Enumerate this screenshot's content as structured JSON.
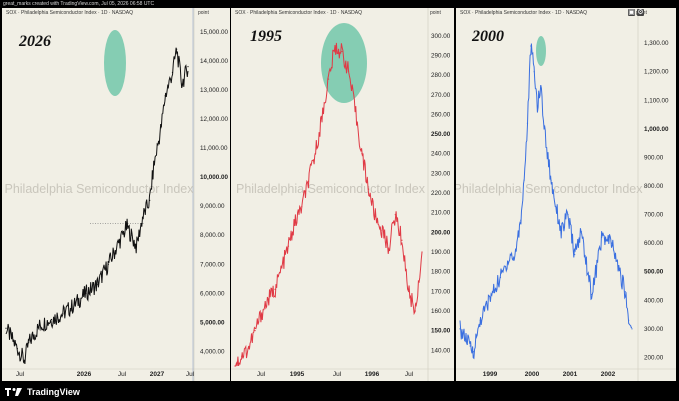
{
  "attribution": "great_marks created with TradingView.com, Jul 05, 2026 06:58 UTC",
  "footer": {
    "brand": "TradingView"
  },
  "colors": {
    "panel_bg": "#f1efe5",
    "highlight": "#5cbfa0"
  },
  "panels": [
    {
      "symbol_label": "SOX · Philadelphia Semiconductor Index · 1D · NASDAQ",
      "unit_label": "point",
      "big_label": "2026",
      "watermark": "Philadelphia Semiconductor Index",
      "x_labels": [
        "Jul",
        "2026",
        "Jul",
        "2027",
        "Jul"
      ],
      "y_labels": [
        "15,000.00",
        "14,000.00",
        "13,000.00",
        "12,000.00",
        "11,000.00",
        "10,000.00",
        "9,000.00",
        "8,000.00",
        "7,000.00",
        "6,000.00",
        "5,000.00",
        "4,000.00"
      ]
    },
    {
      "symbol_label": "SOX · Philadelphia Semiconductor Index · 1D · NASDAQ",
      "unit_label": "point",
      "big_label": "1995",
      "watermark": "Philadelphia Semiconductor Index",
      "x_labels": [
        "Jul",
        "1995",
        "Jul",
        "1996",
        "Jul"
      ],
      "y_labels": [
        "300.00",
        "290.00",
        "280.00",
        "270.00",
        "260.00",
        "250.00",
        "240.00",
        "230.00",
        "220.00",
        "210.00",
        "200.00",
        "190.00",
        "180.00",
        "170.00",
        "160.00",
        "150.00",
        "140.00"
      ]
    },
    {
      "symbol_label": "SOX · Philadelphia Semiconductor Index · 1D · NASDAQ",
      "unit_label": "point",
      "big_label": "2000",
      "watermark": "Philadelphia Semiconductor Index",
      "x_labels": [
        "1999",
        "2000",
        "2001",
        "2002"
      ],
      "y_labels": [
        "1,300.00",
        "1,200.00",
        "1,100.00",
        "1,000.00",
        "900.00",
        "800.00",
        "700.00",
        "600.00",
        "500.00",
        "400.00",
        "300.00",
        "200.00"
      ]
    }
  ],
  "chart_data": [
    {
      "type": "line",
      "title": "SOX · Philadelphia Semiconductor Index · 1D · NASDAQ",
      "ylim": [
        3500,
        15200
      ],
      "grid": false,
      "series": [
        {
          "color": "#111111",
          "x": [
            "2025-03",
            "2025-04",
            "2025-04-20",
            "2025-05",
            "2025-06",
            "2025-07",
            "2025-08",
            "2025-09",
            "2025-10",
            "2025-11",
            "2025-12",
            "2026-01",
            "2026-01-20",
            "2026-02",
            "2026-02-15",
            "2026-03",
            "2026-03-20",
            "2026-04",
            "2026-04-20",
            "2026-05",
            "2026-05-20",
            "2026-06",
            "2026-06-15",
            "2026-07"
          ],
          "values": [
            4800,
            4100,
            3700,
            4300,
            4900,
            5100,
            5300,
            5600,
            6000,
            6300,
            7000,
            7800,
            8300,
            8000,
            7600,
            8600,
            9200,
            10400,
            11700,
            12800,
            13600,
            14400,
            13200,
            13800
          ]
        }
      ],
      "annotations": [
        {
          "type": "highlight-ellipse",
          "region": "peak"
        },
        {
          "type": "dotted-reference",
          "value": 8400
        }
      ]
    },
    {
      "type": "line",
      "title": "SOX · Philadelphia Semiconductor Index · 1D · NASDAQ",
      "ylim": [
        132,
        305
      ],
      "grid": false,
      "series": [
        {
          "color": "#e03a45",
          "x": [
            "1994-05",
            "1994-06",
            "1994-07",
            "1994-08",
            "1994-09",
            "1994-10",
            "1994-11",
            "1994-12",
            "1995-01",
            "1995-02",
            "1995-03",
            "1995-04",
            "1995-05",
            "1995-06",
            "1995-07",
            "1995-08",
            "1995-09",
            "1995-10",
            "1995-11",
            "1995-12",
            "1996-01",
            "1996-02",
            "1996-03",
            "1996-04",
            "1996-05",
            "1996-06",
            "1996-07",
            "1996-08",
            "1996-09"
          ],
          "values": [
            132,
            137,
            141,
            150,
            159,
            166,
            171,
            182,
            193,
            205,
            213,
            226,
            240,
            258,
            278,
            294,
            292,
            282,
            262,
            240,
            222,
            208,
            201,
            192,
            209,
            196,
            170,
            160,
            190
          ]
        }
      ],
      "annotations": [
        {
          "type": "highlight-ellipse",
          "region": "peak"
        }
      ]
    },
    {
      "type": "line",
      "title": "SOX · Philadelphia Semiconductor Index · 1D · NASDAQ",
      "ylim": [
        170,
        1360
      ],
      "grid": false,
      "series": [
        {
          "color": "#3a6fe0",
          "x": [
            "1998-06",
            "1998-09",
            "1998-10",
            "1998-12",
            "1999-03",
            "1999-06",
            "1999-09",
            "1999-10",
            "1999-12",
            "2000-01",
            "2000-02",
            "2000-03",
            "2000-04",
            "2000-05",
            "2000-06",
            "2000-07",
            "2000-09",
            "2000-12",
            "2001-02",
            "2001-04",
            "2001-06",
            "2001-09",
            "2001-10",
            "2001-12",
            "2002-03",
            "2002-05",
            "2002-07",
            "2002-08",
            "2002-09"
          ],
          "values": [
            300,
            240,
            220,
            330,
            410,
            480,
            560,
            540,
            680,
            820,
            1020,
            1290,
            1200,
            1080,
            1150,
            1000,
            820,
            640,
            700,
            560,
            640,
            420,
            480,
            620,
            600,
            510,
            430,
            330,
            300
          ]
        }
      ],
      "annotations": [
        {
          "type": "highlight-ellipse",
          "region": "peak"
        }
      ]
    }
  ]
}
